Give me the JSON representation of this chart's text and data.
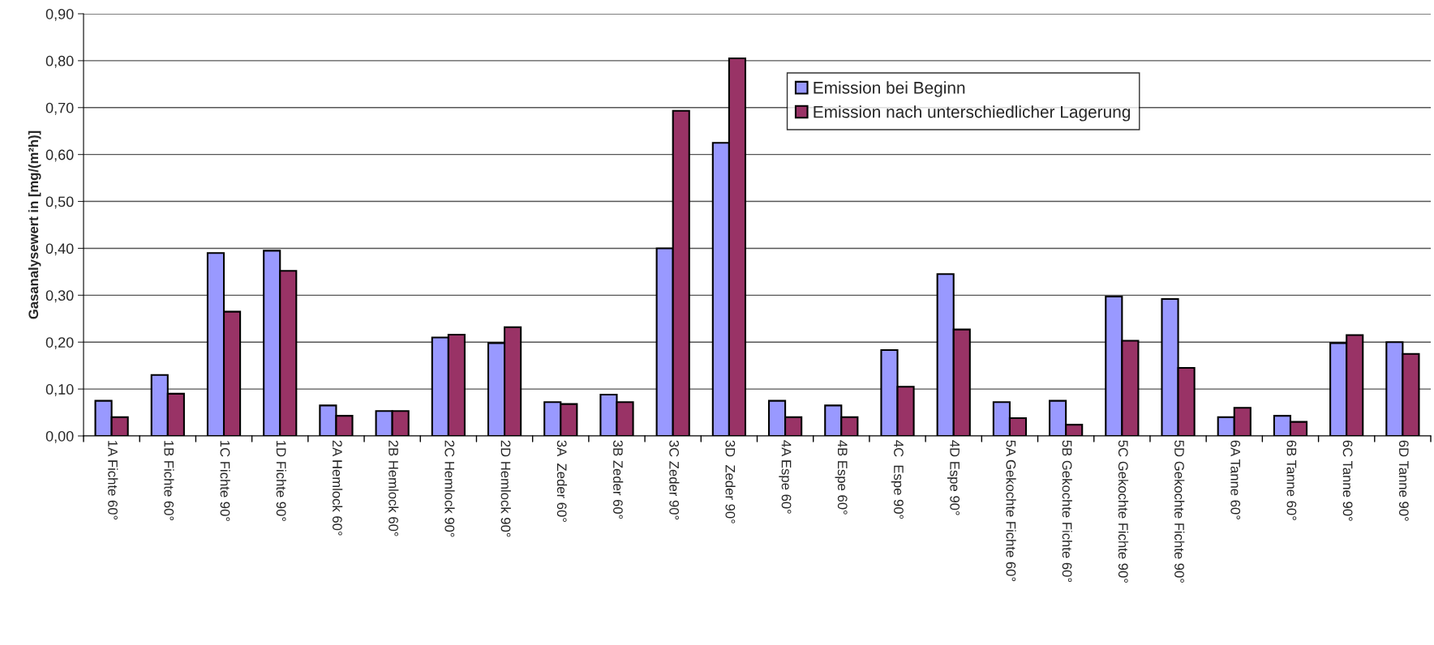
{
  "chart_data": {
    "type": "bar",
    "ylabel": "Gasanalysewert in [mg/(m²h)]",
    "categories": [
      "1A Fichte 60°",
      "1B Fichte 60°",
      "1C Fichte 90°",
      "1D Fichte 90°",
      "2A Hemlock 60°",
      "2B Hemlock 60°",
      "2C Hemlock 90°",
      "2D Hemlock 90°",
      "3A  Zeder 60°",
      "3B Zeder 60°",
      "3C Zeder 90°",
      "3D  Zeder 90°",
      "4A Espe 60°",
      "4B Espe 60°",
      "4C  Espe 90°",
      "4D Espe 90°",
      "5A Gekochte Fichte 60°",
      "5B Gekochte Fichte 60°",
      "5C Gekochte Fichte 90°",
      "5D Gekochte Fichte 90°",
      "6A Tanne 60°",
      "6B Tanne 60°",
      "6C Tanne 90°",
      "6D Tanne 90°"
    ],
    "series": [
      {
        "name": "Emission bei Beginn",
        "color": "#9999ff",
        "values": [
          0.075,
          0.13,
          0.39,
          0.395,
          0.065,
          0.053,
          0.21,
          0.198,
          0.072,
          0.088,
          0.4,
          0.625,
          0.075,
          0.065,
          0.183,
          0.345,
          0.072,
          0.075,
          0.297,
          0.292,
          0.04,
          0.043,
          0.198,
          0.2
        ]
      },
      {
        "name": "Emission nach unterschiedlicher Lagerung",
        "color": "#993366",
        "values": [
          0.04,
          0.09,
          0.265,
          0.352,
          0.043,
          0.053,
          0.216,
          0.232,
          0.068,
          0.072,
          0.693,
          0.805,
          0.04,
          0.04,
          0.105,
          0.227,
          0.038,
          0.024,
          0.203,
          0.145,
          0.06,
          0.03,
          0.215,
          0.175
        ]
      }
    ],
    "ylim": [
      0,
      0.9
    ],
    "yticks": [
      {
        "value": 0,
        "label": "0,00"
      },
      {
        "value": 0.1,
        "label": "0,10"
      },
      {
        "value": 0.2,
        "label": "0,20"
      },
      {
        "value": 0.3,
        "label": "0,30"
      },
      {
        "value": 0.4,
        "label": "0,40"
      },
      {
        "value": 0.5,
        "label": "0,50"
      },
      {
        "value": 0.6,
        "label": "0,60"
      },
      {
        "value": 0.7,
        "label": "0,70"
      },
      {
        "value": 0.8,
        "label": "0,80"
      },
      {
        "value": 0.9,
        "label": "0,90"
      }
    ],
    "grid": "y",
    "legend": "top right"
  }
}
